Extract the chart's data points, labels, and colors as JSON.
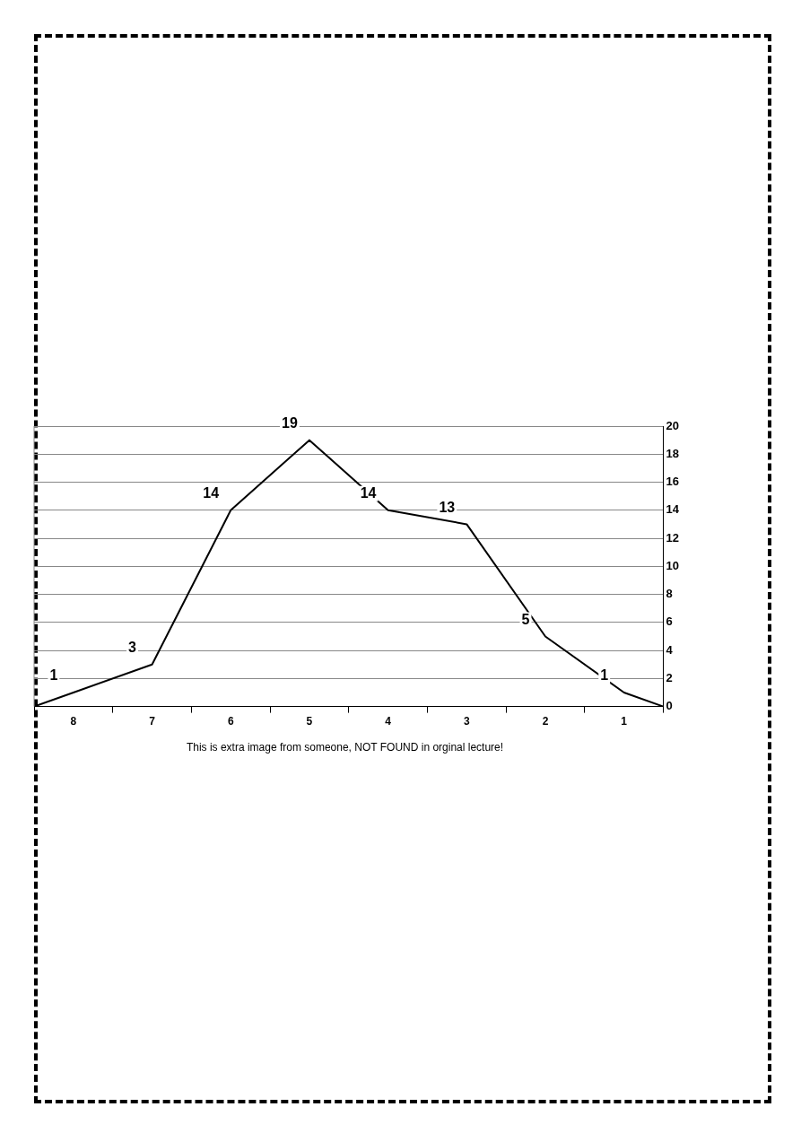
{
  "chart_data": {
    "type": "line",
    "x": [
      8.5,
      8,
      7,
      6,
      5,
      4,
      3,
      2,
      1,
      0.5
    ],
    "series": [
      {
        "color": "#000000",
        "values": [
          0,
          1,
          3,
          14,
          19,
          14,
          13,
          5,
          1,
          0
        ],
        "value_labels": [
          null,
          "1",
          "3",
          "14",
          "19",
          "14",
          "13",
          "5",
          "1",
          null
        ]
      }
    ],
    "xlim": [
      8.5,
      0.5
    ],
    "xticks": [
      {
        "value": 8.5,
        "label": null
      },
      8,
      {
        "value": 7.5,
        "label": null
      },
      7,
      {
        "value": 6.5,
        "label": null
      },
      6,
      {
        "value": 5.5,
        "label": null
      },
      5,
      {
        "value": 4.5,
        "label": null
      },
      4,
      {
        "value": 3.5,
        "label": null
      },
      3,
      {
        "value": 2.5,
        "label": null
      },
      2,
      {
        "value": 1.5,
        "label": null
      },
      1,
      {
        "value": 0.5,
        "label": null
      }
    ],
    "ylim": [
      0,
      20
    ],
    "yticks": [
      0,
      2,
      4,
      6,
      8,
      10,
      12,
      14,
      16,
      18,
      20
    ],
    "grid": "y",
    "marker": "none",
    "line_style": "solid",
    "legend": false,
    "annotations": [
      "This is extra image from someone, NOT FOUND in orginal lecture!"
    ]
  }
}
